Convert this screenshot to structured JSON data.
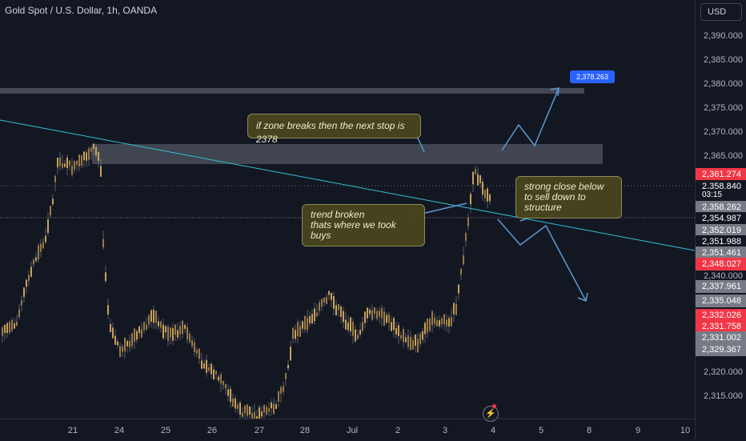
{
  "header": {
    "symbol_title": "Gold Spot / U.S. Dollar, 1h, OANDA"
  },
  "price_axis": {
    "currency": "USD",
    "ticks": [
      "2,390.000",
      "2,385.000",
      "2,380.000",
      "2,375.000",
      "2,370.000",
      "2,365.000",
      "2,340.000",
      "2,320.000",
      "2,315.000"
    ],
    "tags": [
      {
        "label": "2,361.274",
        "color": "#f23645"
      },
      {
        "label": "2,358.840",
        "color": "#131722"
      },
      {
        "label": "03:15",
        "color": "#131722"
      },
      {
        "label": "2,358.262",
        "color": "#787b86"
      },
      {
        "label": "2,354.987",
        "color": "#131722"
      },
      {
        "label": "2,352.019",
        "color": "#787b86"
      },
      {
        "label": "2,351.988",
        "color": "#131722"
      },
      {
        "label": "2,351.461",
        "color": "#787b86"
      },
      {
        "label": "2,348.027",
        "color": "#f23645"
      },
      {
        "label": "2,337.961",
        "color": "#787b86"
      },
      {
        "label": "2,335.048",
        "color": "#787b86"
      },
      {
        "label": "2,332.026",
        "color": "#f23645"
      },
      {
        "label": "2,331.758",
        "color": "#f23645"
      },
      {
        "label": "2,331.002",
        "color": "#787b86"
      },
      {
        "label": "2,329.367",
        "color": "#787b86"
      }
    ]
  },
  "time_axis": {
    "labels": [
      "21",
      "24",
      "25",
      "26",
      "27",
      "28",
      "Jul",
      "2",
      "3",
      "4",
      "5",
      "8",
      "9",
      "10"
    ]
  },
  "annotations": {
    "zone_note": "if zone breaks then the next stop is 2378",
    "trend_note": "trend broken\nthats where we took buys",
    "close_note": "strong close below\nto sell down to structure",
    "target_label": "2,378.263"
  },
  "colors": {
    "background": "#131722",
    "candle": "#c8a15a",
    "trendline": "#2ec2d6",
    "arrow": "#5b9bd5",
    "zone": "#4a4e5a",
    "target": "#2962ff",
    "red_tag": "#f23645",
    "grey_tag": "#787b86"
  },
  "icons": {
    "bolt": "lightning-bolt-icon"
  }
}
